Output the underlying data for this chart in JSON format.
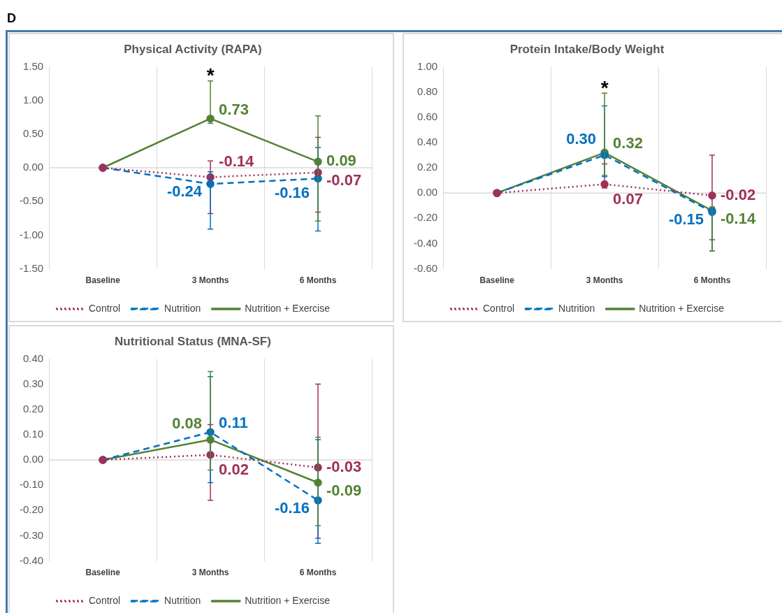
{
  "chart_data": [
    {
      "type": "line",
      "title": "Physical Activity (RAPA)",
      "categories": [
        "Baseline",
        "3 Months",
        "6 Months"
      ],
      "series": [
        {
          "name": "Control",
          "color": "#a0305a",
          "line_style": "dotted",
          "values": [
            0,
            -0.14,
            -0.07
          ],
          "value_labels": [
            null,
            "-0.14",
            "-0.07"
          ],
          "errors": [
            null,
            [
              -0.68,
              0.1
            ],
            [
              -0.66,
              0.45
            ]
          ]
        },
        {
          "name": "Nutrition",
          "color": "#0070c0",
          "line_style": "dashed",
          "values": [
            0,
            -0.24,
            -0.16
          ],
          "value_labels": [
            null,
            "-0.24",
            "-0.16"
          ],
          "errors": [
            null,
            [
              -0.91,
              -0.06
            ],
            [
              -0.94,
              0.3
            ]
          ]
        },
        {
          "name": "Nutrition + Exercise",
          "color": "#548235",
          "line_style": "solid",
          "values": [
            0,
            0.73,
            0.09
          ],
          "value_labels": [
            null,
            "0.73",
            "0.09"
          ],
          "errors": [
            null,
            [
              0.66,
              1.29
            ],
            [
              -0.79,
              0.77
            ]
          ]
        }
      ],
      "ylim": [
        -1.5,
        1.5
      ],
      "yticks": [
        {
          "value": -1.5,
          "label": "-1.50"
        },
        {
          "value": -1,
          "label": "-1.00"
        },
        {
          "value": -0.5,
          "label": "-0.50"
        },
        {
          "value": 0,
          "label": "0.00"
        },
        {
          "value": 0.5,
          "label": "0.50"
        },
        {
          "value": 1,
          "label": "1.00"
        },
        {
          "value": 1.5,
          "label": "1.50"
        }
      ],
      "grid": "x",
      "legend": "bottom",
      "marker": "circle",
      "ref_lines": [
        {
          "axis": "y",
          "value": 0,
          "color": "#d9d9d9"
        }
      ],
      "annotations": [
        "D",
        "*"
      ]
    },
    {
      "type": "line",
      "title": "Protein Intake/Body Weight",
      "categories": [
        "Baseline",
        "3 Months",
        "6 Months"
      ],
      "series": [
        {
          "name": "Control",
          "color": "#a0305a",
          "line_style": "dotted",
          "values": [
            0,
            0.07,
            -0.02
          ],
          "value_labels": [
            null,
            "0.07",
            "-0.02"
          ],
          "errors": [
            null,
            [
              0.04,
              0.23
            ],
            [
              -0.37,
              0.3
            ]
          ]
        },
        {
          "name": "Nutrition",
          "color": "#0070c0",
          "line_style": "dashed",
          "values": [
            0,
            0.3,
            -0.15
          ],
          "value_labels": [
            null,
            "0.30",
            "-0.15"
          ],
          "errors": [
            null,
            [
              0.13,
              0.69
            ],
            [
              -0.46,
              -0.12
            ]
          ]
        },
        {
          "name": "Nutrition + Exercise",
          "color": "#548235",
          "line_style": "solid",
          "values": [
            0,
            0.32,
            -0.14
          ],
          "value_labels": [
            null,
            "0.32",
            "-0.14"
          ],
          "errors": [
            null,
            [
              0.14,
              0.79
            ],
            [
              -0.46,
              -0.11
            ]
          ]
        }
      ],
      "ylim": [
        -0.6,
        1
      ],
      "yticks": [
        {
          "value": -0.6,
          "label": "-0.60"
        },
        {
          "value": -0.4,
          "label": "-0.40"
        },
        {
          "value": -0.2,
          "label": "-0.20"
        },
        {
          "value": 0,
          "label": "0.00"
        },
        {
          "value": 0.2,
          "label": "0.20"
        },
        {
          "value": 0.4,
          "label": "0.40"
        },
        {
          "value": 0.6,
          "label": "0.60"
        },
        {
          "value": 0.8,
          "label": "0.80"
        },
        {
          "value": 1,
          "label": "1.00"
        }
      ],
      "grid": "x",
      "legend": "bottom",
      "marker": "circle",
      "ref_lines": [
        {
          "axis": "y",
          "value": 0,
          "color": "#d9d9d9"
        }
      ],
      "annotations": [
        "*"
      ]
    },
    {
      "type": "line",
      "title": "Nutritional Status (MNA-SF)",
      "categories": [
        "Baseline",
        "3 Months",
        "6 Months"
      ],
      "series": [
        {
          "name": "Control",
          "color": "#a0305a",
          "line_style": "dotted",
          "values": [
            0,
            0.02,
            -0.03
          ],
          "value_labels": [
            null,
            "0.02",
            "-0.03"
          ],
          "errors": [
            null,
            [
              -0.16,
              0.14
            ],
            [
              -0.31,
              0.3
            ]
          ]
        },
        {
          "name": "Nutrition",
          "color": "#0070c0",
          "line_style": "dashed",
          "values": [
            0,
            0.11,
            -0.16
          ],
          "value_labels": [
            null,
            "0.11",
            "-0.16"
          ],
          "errors": [
            null,
            [
              -0.09,
              0.33
            ],
            [
              -0.33,
              0.08
            ]
          ]
        },
        {
          "name": "Nutrition + Exercise",
          "color": "#548235",
          "line_style": "solid",
          "values": [
            0,
            0.08,
            -0.09
          ],
          "value_labels": [
            null,
            "0.08",
            "-0.09"
          ],
          "errors": [
            null,
            [
              -0.04,
              0.35
            ],
            [
              -0.26,
              0.09
            ]
          ]
        }
      ],
      "ylim": [
        -0.4,
        0.4
      ],
      "yticks": [
        {
          "value": -0.4,
          "label": "-0.40"
        },
        {
          "value": -0.3,
          "label": "-0.30"
        },
        {
          "value": -0.2,
          "label": "-0.20"
        },
        {
          "value": -0.1,
          "label": "-0.10"
        },
        {
          "value": 0,
          "label": "0.00"
        },
        {
          "value": 0.1,
          "label": "0.10"
        },
        {
          "value": 0.2,
          "label": "0.20"
        },
        {
          "value": 0.3,
          "label": "0.30"
        },
        {
          "value": 0.4,
          "label": "0.40"
        }
      ],
      "grid": "x",
      "legend": "bottom",
      "marker": "circle",
      "ref_lines": [
        {
          "axis": "y",
          "value": 0,
          "color": "#d9d9d9"
        }
      ]
    }
  ]
}
